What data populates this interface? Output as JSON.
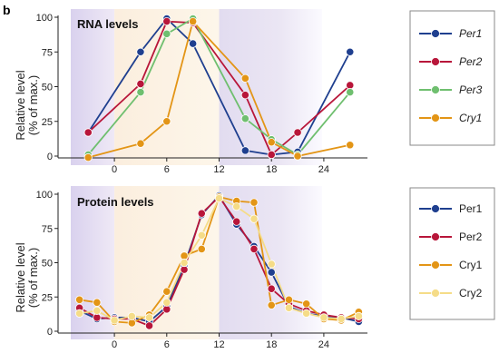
{
  "panel_letter": "b",
  "chart_data": [
    {
      "type": "line",
      "title": "RNA levels",
      "ylabel_lines": [
        "Relative level",
        "(% of max.)"
      ],
      "yticks": [
        0,
        25,
        50,
        75,
        100
      ],
      "xticks": [
        0,
        6,
        12,
        18,
        24
      ],
      "xlim": [
        -5,
        29
      ],
      "ylim": [
        -4,
        102
      ],
      "legend_italic": true,
      "series": [
        {
          "name": "Per1",
          "color": "#1f3f8f",
          "x": [
            -3,
            3,
            6,
            9,
            15,
            18,
            21,
            27
          ],
          "y": [
            17,
            75,
            99,
            81,
            4,
            1,
            3,
            75
          ]
        },
        {
          "name": "Per2",
          "color": "#b8163a",
          "x": [
            -3,
            3,
            6,
            9,
            15,
            18,
            21,
            27
          ],
          "y": [
            17,
            52,
            97,
            96,
            44,
            1,
            17,
            51
          ]
        },
        {
          "name": "Per3",
          "color": "#6fbf6f",
          "x": [
            -3,
            3,
            6,
            9,
            15,
            18,
            21,
            27
          ],
          "y": [
            1,
            46,
            88,
            99,
            27,
            12,
            1,
            46
          ]
        },
        {
          "name": "Cry1",
          "color": "#e39516",
          "x": [
            -3,
            3,
            6,
            9,
            15,
            18,
            21,
            27
          ],
          "y": [
            -1,
            9,
            25,
            97,
            56,
            10,
            0,
            8
          ]
        }
      ]
    },
    {
      "type": "line",
      "title": "Protein levels",
      "ylabel_lines": [
        "Relative level",
        "(% of max.)"
      ],
      "yticks": [
        0,
        25,
        50,
        75,
        100
      ],
      "xticks": [
        0,
        6,
        12,
        18,
        24
      ],
      "xlim": [
        -5,
        29
      ],
      "ylim": [
        -4,
        102
      ],
      "legend_italic": false,
      "series": [
        {
          "name": "Per1",
          "color": "#1f3f8f",
          "x": [
            -4,
            -2,
            0,
            2,
            4,
            6,
            8,
            10,
            12,
            14,
            16,
            18,
            20,
            22,
            24,
            26,
            28
          ],
          "y": [
            15,
            9,
            10,
            10,
            7,
            18,
            48,
            85,
            99,
            78,
            62,
            43,
            18,
            13,
            11,
            10,
            7
          ]
        },
        {
          "name": "Per2",
          "color": "#b8163a",
          "x": [
            -4,
            -2,
            0,
            2,
            4,
            6,
            8,
            10,
            12,
            14,
            16,
            18,
            20,
            22,
            24,
            26,
            28
          ],
          "y": [
            17,
            10,
            9,
            9,
            4,
            16,
            45,
            86,
            98,
            80,
            60,
            31,
            20,
            15,
            12,
            10,
            9
          ]
        },
        {
          "name": "Cry1",
          "color": "#e39516",
          "x": [
            -4,
            -2,
            0,
            2,
            4,
            6,
            8,
            10,
            12,
            14,
            16,
            18,
            20,
            22,
            24,
            26,
            28
          ],
          "y": [
            23,
            21,
            7,
            6,
            12,
            29,
            55,
            60,
            98,
            95,
            94,
            19,
            23,
            20,
            9,
            8,
            14
          ]
        },
        {
          "name": "Cry2",
          "color": "#f5dc88",
          "x": [
            -4,
            -2,
            0,
            2,
            4,
            6,
            8,
            10,
            12,
            14,
            16,
            18,
            20,
            22,
            24,
            26,
            28
          ],
          "y": [
            13,
            15,
            8,
            11,
            10,
            21,
            50,
            70,
            97,
            91,
            82,
            49,
            17,
            13,
            10,
            9,
            11
          ]
        }
      ]
    }
  ]
}
